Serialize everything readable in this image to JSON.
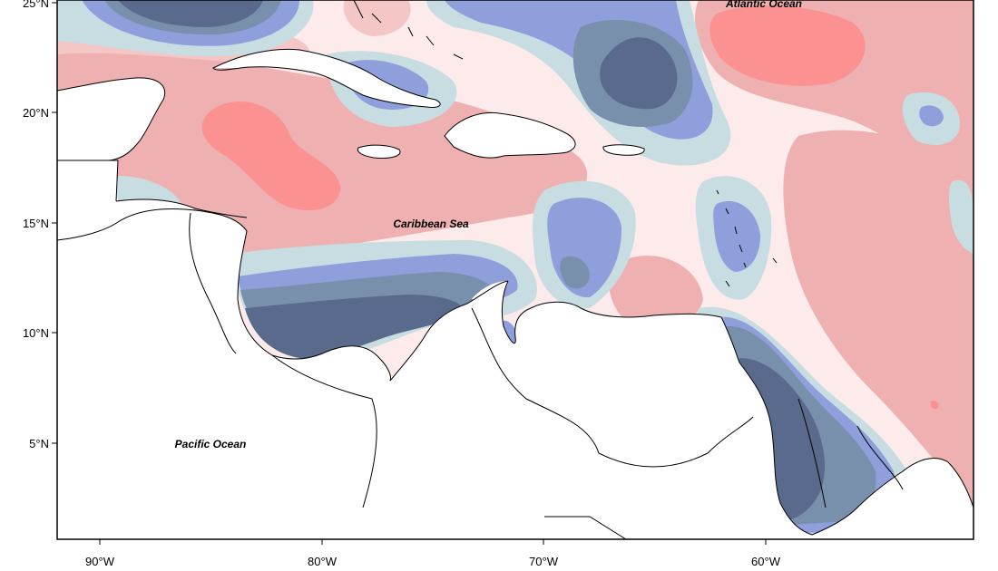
{
  "map": {
    "labels": {
      "atlantic": "Atlantic Ocean",
      "caribbean": "Caribbean Sea",
      "pacific": "Pacific Ocean"
    },
    "lat_ticks": [
      "25°N",
      "20°N",
      "15°N",
      "10°N",
      "5°N"
    ],
    "lon_ticks": [
      "90°W",
      "80°W",
      "70°W",
      "60°W"
    ],
    "palette": {
      "deep_neg": "#5a6a8c",
      "mid_neg": "#7890ac",
      "light_neg": "#8f9fdc",
      "pale_neg": "#c8dde2",
      "near_zero": "#fdeaea",
      "pale_pos": "#f4c6c6",
      "mid_pos": "#eeb0b0",
      "strong_pos": "#fb9191",
      "land": "#ffffff",
      "coast": "#000000"
    }
  }
}
